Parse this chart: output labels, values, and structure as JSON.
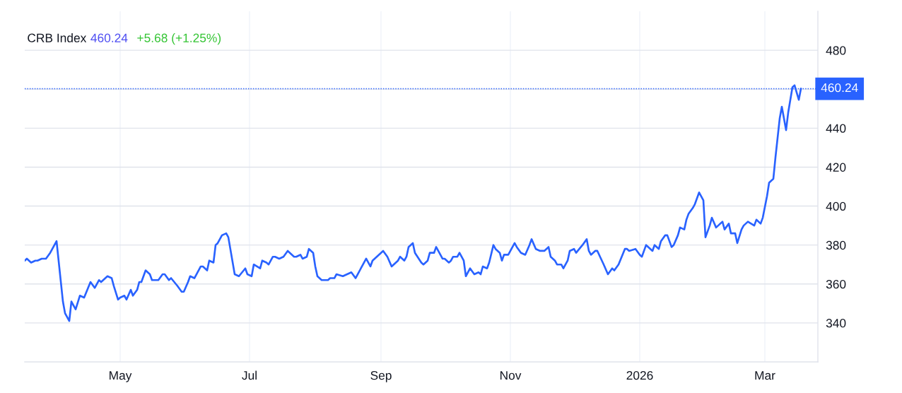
{
  "chart_data": {
    "type": "line",
    "title": "CRB Index",
    "annotations": [
      "460.24",
      "+5.68 (+1.25%)"
    ],
    "x": [
      "2025-03-17",
      "2025-03-18",
      "2025-03-20",
      "2025-03-22",
      "2025-03-23",
      "2025-03-25",
      "2025-03-26",
      "2025-03-27",
      "2025-03-29",
      "2025-03-30",
      "2025-04-01",
      "2025-04-04",
      "2025-04-05",
      "2025-04-07",
      "2025-04-08",
      "2025-04-10",
      "2025-04-12",
      "2025-04-14",
      "2025-04-17",
      "2025-04-19",
      "2025-04-21",
      "2025-04-22",
      "2025-04-24",
      "2025-04-25",
      "2025-04-27",
      "2025-04-28",
      "2025-04-30",
      "2025-05-01",
      "2025-05-03",
      "2025-05-04",
      "2025-05-06",
      "2025-05-07",
      "2025-05-09",
      "2025-05-10",
      "2025-05-11",
      "2025-05-13",
      "2025-05-15",
      "2025-05-16",
      "2025-05-19",
      "2025-05-21",
      "2025-05-22",
      "2025-05-24",
      "2025-05-25",
      "2025-05-28",
      "2025-05-30",
      "2025-05-31",
      "2025-06-02",
      "2025-06-03",
      "2025-06-05",
      "2025-06-08",
      "2025-06-09",
      "2025-06-11",
      "2025-06-12",
      "2025-06-14",
      "2025-06-15",
      "2025-06-16",
      "2025-06-18",
      "2025-06-20",
      "2025-06-21",
      "2025-06-24",
      "2025-06-26",
      "2025-06-29",
      "2025-06-30",
      "2025-07-02",
      "2025-07-03",
      "2025-07-06",
      "2025-07-07",
      "2025-07-09",
      "2025-07-10",
      "2025-07-12",
      "2025-07-13",
      "2025-07-15",
      "2025-07-17",
      "2025-07-19",
      "2025-07-22",
      "2025-07-23",
      "2025-07-25",
      "2025-07-26",
      "2025-07-28",
      "2025-07-29",
      "2025-07-31",
      "2025-08-01",
      "2025-08-02",
      "2025-08-04",
      "2025-08-07",
      "2025-08-08",
      "2025-08-10",
      "2025-08-11",
      "2025-08-14",
      "2025-08-16",
      "2025-08-18",
      "2025-08-20",
      "2025-08-23",
      "2025-08-25",
      "2025-08-27",
      "2025-08-28",
      "2025-08-31",
      "2025-09-02",
      "2025-09-04",
      "2025-09-06",
      "2025-09-08",
      "2025-09-09",
      "2025-09-10",
      "2025-09-12",
      "2025-09-13",
      "2025-09-14",
      "2025-09-16",
      "2025-09-17",
      "2025-09-20",
      "2025-09-21",
      "2025-09-23",
      "2025-09-24",
      "2025-09-26",
      "2025-09-27",
      "2025-09-29",
      "2025-09-30",
      "2025-10-01",
      "2025-10-03",
      "2025-10-04",
      "2025-10-05",
      "2025-10-07",
      "2025-10-08",
      "2025-10-10",
      "2025-10-11",
      "2025-10-13",
      "2025-10-15",
      "2025-10-17",
      "2025-10-18",
      "2025-10-19",
      "2025-10-21",
      "2025-10-22",
      "2025-10-24",
      "2025-10-25",
      "2025-10-27",
      "2025-10-28",
      "2025-10-29",
      "2025-10-31",
      "2025-11-01",
      "2025-11-03",
      "2025-11-04",
      "2025-11-06",
      "2025-11-08",
      "2025-11-10",
      "2025-11-11",
      "2025-11-13",
      "2025-11-15",
      "2025-11-17",
      "2025-11-19",
      "2025-11-20",
      "2025-11-22",
      "2025-11-23",
      "2025-11-25",
      "2025-11-26",
      "2025-11-28",
      "2025-11-29",
      "2025-12-01",
      "2025-12-02",
      "2025-12-05",
      "2025-12-07",
      "2025-12-08",
      "2025-12-09",
      "2025-12-11",
      "2025-12-12",
      "2025-12-15",
      "2025-12-17",
      "2025-12-19",
      "2025-12-20",
      "2025-12-22",
      "2025-12-25",
      "2025-12-26",
      "2025-12-27",
      "2025-12-30",
      "2026-01-01",
      "2026-01-02",
      "2026-01-04",
      "2026-01-05",
      "2026-01-07",
      "2026-01-08",
      "2026-01-10",
      "2026-01-11",
      "2026-01-13",
      "2026-01-14",
      "2026-01-16",
      "2026-01-17",
      "2026-01-19",
      "2026-01-20",
      "2026-01-22",
      "2026-01-23",
      "2026-01-24",
      "2026-01-26",
      "2026-01-27",
      "2026-01-29",
      "2026-01-31",
      "2026-02-01",
      "2026-02-03",
      "2026-02-04",
      "2026-02-06",
      "2026-02-07",
      "2026-02-09",
      "2026-02-10",
      "2026-02-12",
      "2026-02-13",
      "2026-02-15",
      "2026-02-16",
      "2026-02-18",
      "2026-02-19",
      "2026-02-21",
      "2026-02-24",
      "2026-02-25",
      "2026-02-27",
      "2026-02-28",
      "2026-03-02",
      "2026-03-03",
      "2026-03-05",
      "2026-03-06",
      "2026-03-08",
      "2026-03-09",
      "2026-03-11",
      "2026-03-12",
      "2026-03-14",
      "2026-03-15",
      "2026-03-17",
      "2026-03-18"
    ],
    "series": [
      {
        "color": "#2962ff",
        "values": [
          372,
          373,
          371,
          372,
          372,
          373,
          373,
          373,
          376,
          378,
          382,
          351,
          345,
          341,
          351,
          347,
          354,
          353,
          361,
          358,
          362,
          361,
          363,
          364,
          363,
          359,
          352,
          353,
          354,
          352,
          357,
          354,
          357,
          361,
          361,
          367,
          365,
          362,
          362,
          365,
          365,
          362,
          363,
          359,
          356,
          356,
          361,
          364,
          363,
          369,
          369,
          367,
          372,
          371,
          380,
          381,
          385,
          386,
          384,
          365,
          364,
          368,
          365,
          364,
          370,
          368,
          372,
          371,
          370,
          374,
          374,
          373,
          374,
          377,
          374,
          374,
          375,
          373,
          374,
          378,
          376,
          369,
          364,
          362,
          362,
          363,
          363,
          365,
          364,
          365,
          366,
          363,
          369,
          373,
          369,
          372,
          375,
          377,
          374,
          369,
          371,
          372,
          374,
          372,
          374,
          379,
          381,
          376,
          371,
          370,
          372,
          376,
          376,
          379,
          375,
          373,
          373,
          371,
          372,
          374,
          374,
          376,
          372,
          364,
          368,
          365,
          366,
          365,
          369,
          368,
          371,
          380,
          378,
          376,
          372,
          375,
          375,
          377,
          381,
          379,
          376,
          375,
          380,
          383,
          378,
          377,
          377,
          379,
          374,
          372,
          370,
          370,
          368,
          372,
          377,
          378,
          376,
          380,
          383,
          377,
          375,
          377,
          377,
          370,
          365,
          368,
          367,
          370,
          378,
          378,
          377,
          378,
          375,
          374,
          380,
          379,
          377,
          380,
          378,
          382,
          385,
          385,
          379,
          380,
          385,
          389,
          388,
          393,
          396,
          399,
          401,
          407,
          403,
          384,
          390,
          394,
          389,
          390,
          392,
          388,
          391,
          386,
          386,
          381,
          388,
          390,
          392,
          390,
          393,
          391,
          394,
          405,
          412,
          414,
          425,
          445,
          451,
          439,
          448,
          461,
          462,
          454.56,
          460.24
        ]
      }
    ],
    "xlim": [
      "2025-03-17",
      "2026-03-26"
    ],
    "xticks": [
      {
        "value": "2025-05-01",
        "label": "May"
      },
      {
        "value": "2025-07-01",
        "label": "Jul"
      },
      {
        "value": "2025-09-01",
        "label": "Sep"
      },
      {
        "value": "2025-11-01",
        "label": "Nov"
      },
      {
        "value": "2026-01-01",
        "label": "2026"
      },
      {
        "value": "2026-03-01",
        "label": "Mar"
      }
    ],
    "ylim": [
      320,
      500
    ],
    "yticks": [
      340,
      360,
      380,
      400,
      420,
      440,
      {
        "value": 460,
        "label": null
      },
      480
    ],
    "ref_lines": [
      {
        "axis": "y",
        "value": 460.24,
        "label": "460.24",
        "color": "#2962ff",
        "line_style": "dotted"
      }
    ],
    "grid": true
  }
}
